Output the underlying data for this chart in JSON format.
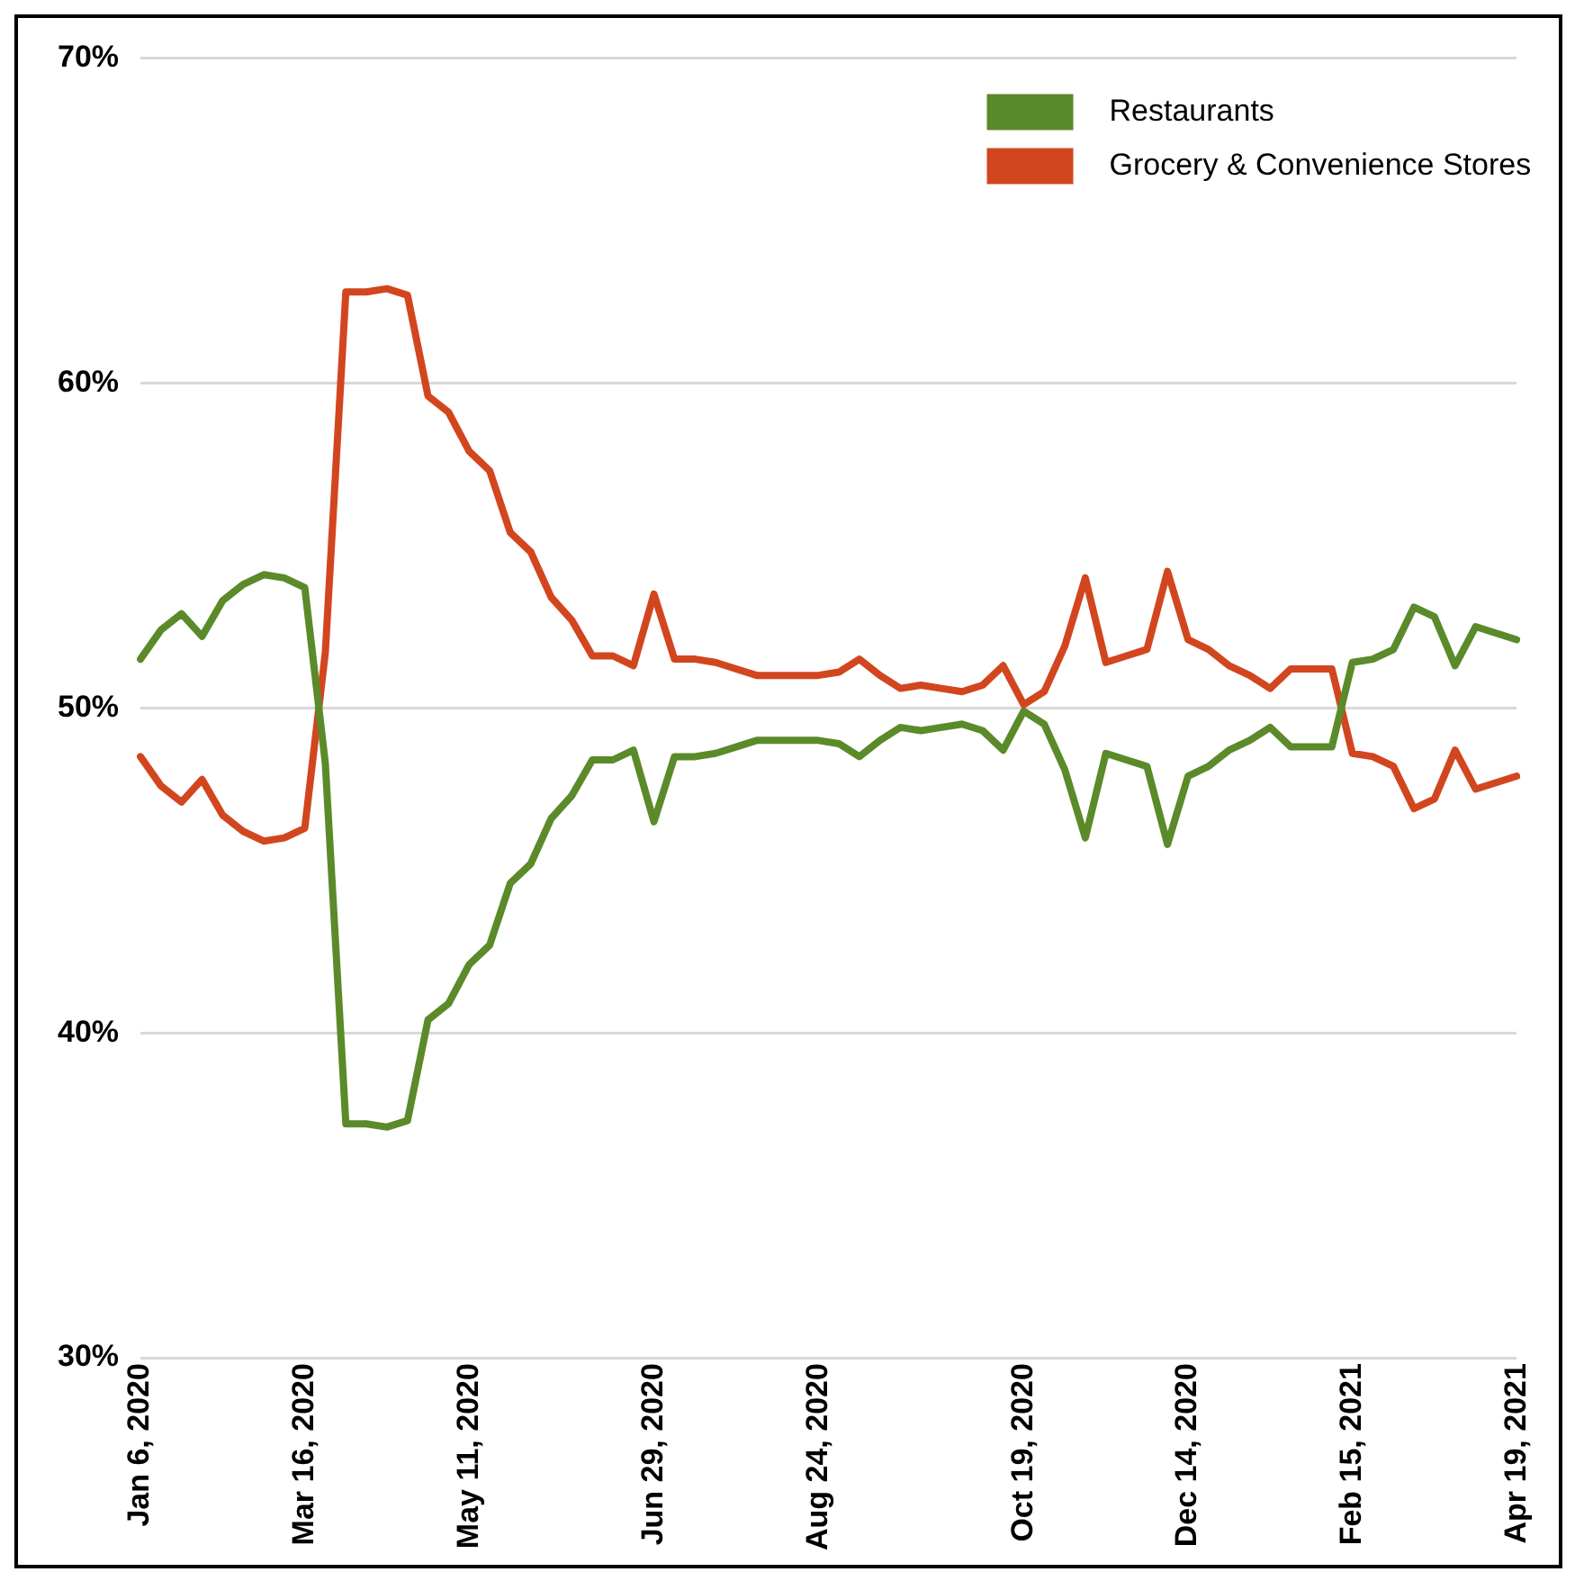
{
  "chart_data": {
    "type": "line",
    "categories": [
      "Jan 6, 2020",
      null,
      null,
      null,
      null,
      null,
      null,
      null,
      "Mar 16, 2020",
      null,
      null,
      null,
      null,
      null,
      null,
      null,
      "May 11, 2020",
      null,
      null,
      null,
      null,
      null,
      null,
      null,
      null,
      "Jun 29, 2020",
      null,
      null,
      null,
      null,
      null,
      null,
      null,
      "Aug 24, 2020",
      null,
      null,
      null,
      null,
      null,
      null,
      null,
      null,
      null,
      "Oct 19, 2020",
      null,
      null,
      null,
      null,
      null,
      null,
      null,
      "Dec 14, 2020",
      null,
      null,
      null,
      null,
      null,
      null,
      null,
      "Feb 15, 2021",
      null,
      null,
      null,
      null,
      null,
      null,
      null,
      "Apr 19, 2021"
    ],
    "series": [
      {
        "name": "Restaurants",
        "color": "#5b8a2a",
        "values": [
          51.5,
          52.4,
          52.9,
          52.2,
          53.3,
          53.8,
          54.1,
          54.0,
          53.7,
          48.3,
          37.2,
          37.2,
          37.1,
          37.3,
          40.4,
          40.9,
          42.1,
          42.7,
          44.6,
          45.2,
          46.6,
          47.3,
          48.4,
          48.4,
          48.7,
          46.5,
          48.5,
          48.5,
          48.6,
          48.8,
          49.0,
          49.0,
          49.0,
          49.0,
          48.9,
          48.5,
          49.0,
          49.4,
          49.3,
          49.4,
          49.5,
          49.3,
          48.7,
          49.9,
          49.5,
          48.1,
          46.0,
          48.6,
          48.4,
          48.2,
          45.8,
          47.9,
          48.2,
          48.7,
          49.0,
          49.4,
          48.8,
          48.8,
          48.8,
          51.4,
          51.5,
          51.8,
          53.1,
          52.8,
          51.3,
          52.5,
          52.3,
          52.1
        ]
      },
      {
        "name": "Grocery & Convenience Stores",
        "color": "#d2461f",
        "values": [
          48.5,
          47.6,
          47.1,
          47.8,
          46.7,
          46.2,
          45.9,
          46.0,
          46.3,
          51.7,
          62.8,
          62.8,
          62.9,
          62.7,
          59.6,
          59.1,
          57.9,
          57.3,
          55.4,
          54.8,
          53.4,
          52.7,
          51.6,
          51.6,
          51.3,
          53.5,
          51.5,
          51.5,
          51.4,
          51.2,
          51.0,
          51.0,
          51.0,
          51.0,
          51.1,
          51.5,
          51.0,
          50.6,
          50.7,
          50.6,
          50.5,
          50.7,
          51.3,
          50.1,
          50.5,
          51.9,
          54.0,
          51.4,
          51.6,
          51.8,
          54.2,
          52.1,
          51.8,
          51.3,
          51.0,
          50.6,
          51.2,
          51.2,
          51.2,
          48.6,
          48.5,
          48.2,
          46.9,
          47.2,
          48.7,
          47.5,
          47.7,
          47.9
        ]
      }
    ],
    "ylim": [
      30,
      70
    ],
    "yticks": [
      {
        "value": 30,
        "label": "30%"
      },
      {
        "value": 40,
        "label": "40%"
      },
      {
        "value": 50,
        "label": "50%"
      },
      {
        "value": 60,
        "label": "60%"
      },
      {
        "value": 70,
        "label": "70%"
      }
    ],
    "grid": "y",
    "legend": "top right",
    "marker": "none",
    "line_style": "solid"
  }
}
